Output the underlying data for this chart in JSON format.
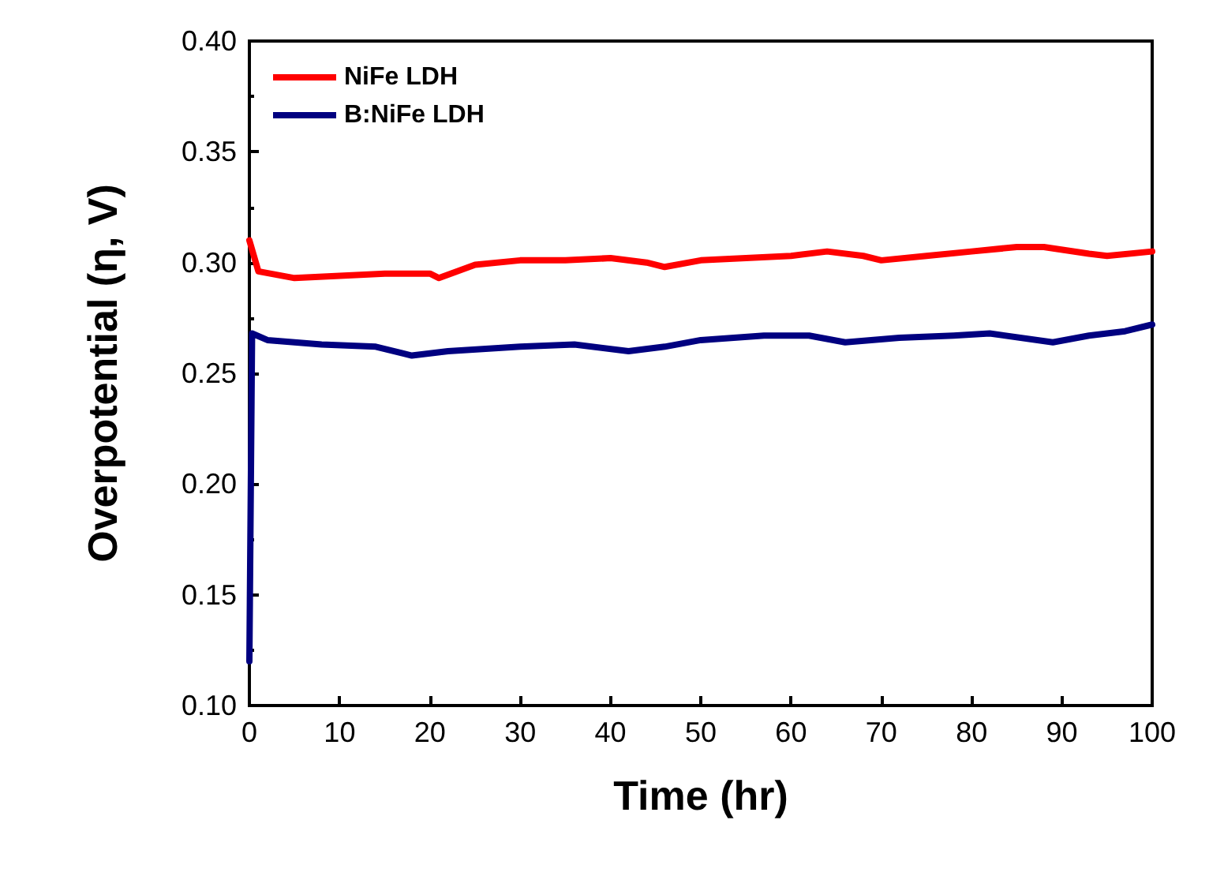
{
  "chart_data": {
    "type": "line",
    "xlabel": "Time (hr)",
    "ylabel": "Overpotential (η, V)",
    "xlim": [
      0,
      100
    ],
    "xticks": [
      0,
      10,
      20,
      30,
      40,
      50,
      60,
      70,
      80,
      90,
      100
    ],
    "ylim": [
      0.1,
      0.4
    ],
    "yticks": [
      {
        "value": 0.1,
        "label": "0.10"
      },
      0.15,
      {
        "value": 0.2,
        "label": "0.20"
      },
      0.25,
      {
        "value": 0.3,
        "label": "0.30"
      },
      0.35,
      {
        "value": 0.4,
        "label": "0.40"
      }
    ],
    "grid": false,
    "legend": "top left",
    "marker": "none",
    "line_style": "solid",
    "series": [
      {
        "name": "NiFe LDH",
        "color": "#ff0000",
        "x": [
          0,
          1,
          5,
          10,
          15,
          20,
          21,
          25,
          30,
          35,
          40,
          44,
          46,
          50,
          55,
          60,
          64,
          68,
          70,
          75,
          80,
          85,
          88,
          93,
          95,
          100
        ],
        "values": [
          0.31,
          0.296,
          0.293,
          0.294,
          0.295,
          0.295,
          0.293,
          0.299,
          0.301,
          0.301,
          0.302,
          0.3,
          0.298,
          0.301,
          0.302,
          0.303,
          0.305,
          0.303,
          0.301,
          0.303,
          0.305,
          0.307,
          0.307,
          0.304,
          0.303,
          0.305
        ]
      },
      {
        "name": "B:NiFe LDH",
        "color": "#000080",
        "x": [
          0,
          0.3,
          2,
          8,
          14,
          18,
          22,
          30,
          36,
          42,
          46,
          50,
          57,
          62,
          66,
          72,
          78,
          82,
          89,
          93,
          97,
          100
        ],
        "values": [
          0.12,
          0.268,
          0.265,
          0.263,
          0.262,
          0.258,
          0.26,
          0.262,
          0.263,
          0.26,
          0.262,
          0.265,
          0.267,
          0.267,
          0.264,
          0.266,
          0.267,
          0.268,
          0.264,
          0.267,
          0.269,
          0.272
        ]
      }
    ]
  }
}
